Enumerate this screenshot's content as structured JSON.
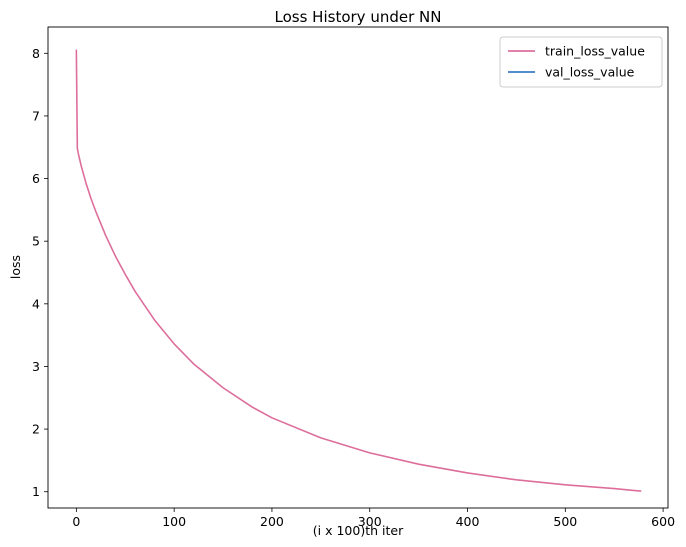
{
  "chart_data": {
    "type": "line",
    "title": "Loss History under NN",
    "xlabel": "(i x 100)th iter",
    "ylabel": "loss",
    "xlim": [
      -29,
      605
    ],
    "ylim": [
      0.74,
      8.42
    ],
    "xticks": [
      0,
      100,
      200,
      300,
      400,
      500,
      600
    ],
    "yticks": [
      1,
      2,
      3,
      4,
      5,
      6,
      7,
      8
    ],
    "grid": false,
    "legend_position": "top-right",
    "series": [
      {
        "name": "train_loss_value",
        "color": "#dd6e9c",
        "x": [
          0,
          1,
          2,
          5,
          10,
          15,
          20,
          30,
          40,
          50,
          60,
          80,
          100,
          120,
          150,
          180,
          200,
          250,
          300,
          350,
          400,
          450,
          500,
          550,
          577
        ],
        "y": [
          8.05,
          6.48,
          6.4,
          6.2,
          5.92,
          5.68,
          5.47,
          5.09,
          4.76,
          4.47,
          4.2,
          3.74,
          3.36,
          3.04,
          2.66,
          2.35,
          2.18,
          1.86,
          1.62,
          1.44,
          1.3,
          1.19,
          1.11,
          1.05,
          1.01
        ]
      },
      {
        "name": "val_loss_value",
        "color": "#3b7dc4",
        "x": [],
        "y": []
      }
    ]
  }
}
